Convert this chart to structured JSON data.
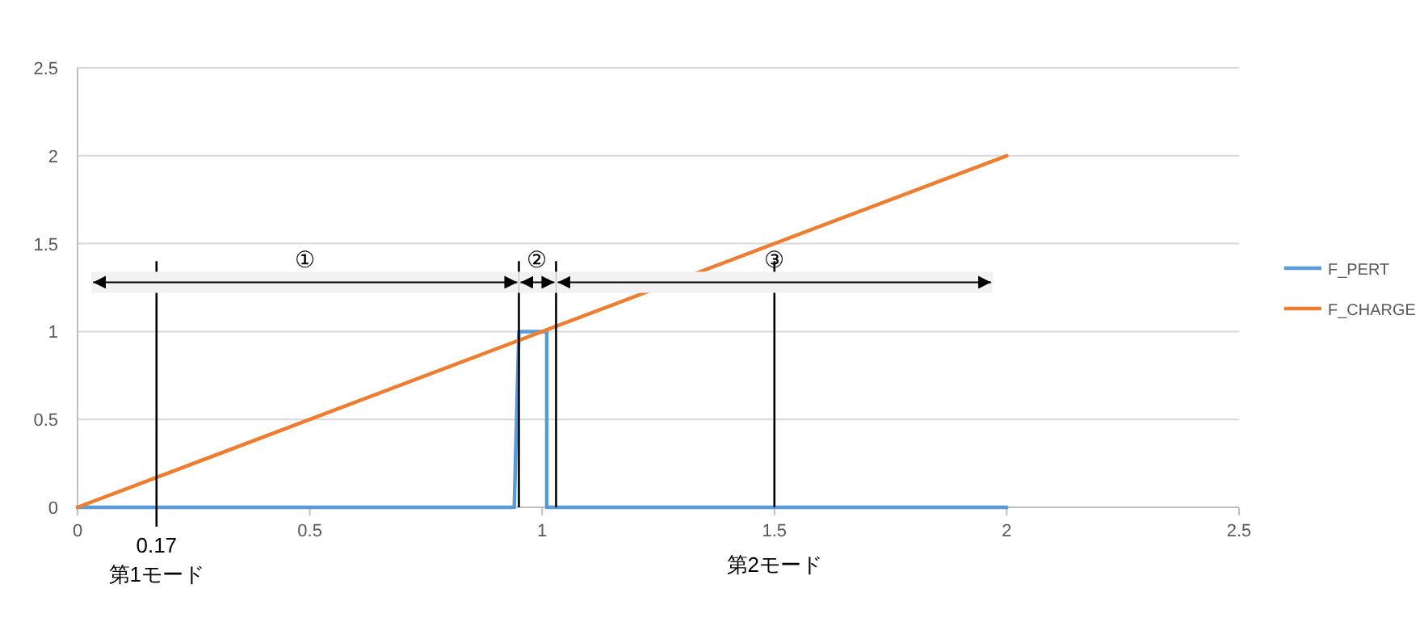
{
  "chart_data": {
    "type": "line",
    "series": [
      {
        "name": "F_PERT",
        "color": "#5b9bd5",
        "x": [
          0,
          0.94,
          0.95,
          1.01,
          1.01,
          2
        ],
        "values": [
          0,
          0,
          1,
          1,
          0,
          0
        ]
      },
      {
        "name": "F_CHARGE",
        "color": "#ed7d31",
        "x": [
          0,
          2
        ],
        "values": [
          0,
          2
        ]
      }
    ],
    "xlim": [
      0,
      2.5
    ],
    "xticks": [
      0,
      0.5,
      1,
      1.5,
      2,
      2.5
    ],
    "ylim": [
      0,
      2.5
    ],
    "yticks": [
      0,
      0.5,
      1,
      1.5,
      2,
      2.5
    ],
    "grid": "y",
    "legend": "right",
    "ref_lines": [
      {
        "axis": "x",
        "value": 0.17,
        "label": "0.17"
      },
      {
        "axis": "x",
        "value": 0.95
      },
      {
        "axis": "x",
        "value": 1.03
      },
      {
        "axis": "x",
        "value": 1.5
      }
    ],
    "annotations": [
      "第1モード",
      "第2モード"
    ],
    "bands": [
      {
        "axis": "x",
        "from": 0.03,
        "to": 0.95,
        "label": "①"
      },
      {
        "axis": "x",
        "from": 0.95,
        "to": 1.03,
        "label": "②"
      },
      {
        "axis": "x",
        "from": 1.03,
        "to": 1.97,
        "label": "③"
      }
    ]
  }
}
